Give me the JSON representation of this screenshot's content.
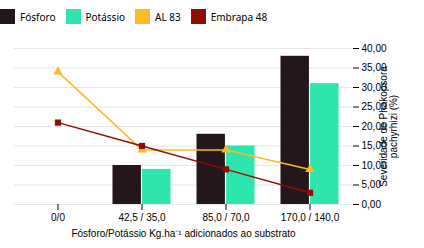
{
  "chart_data": {
    "type": "bar",
    "categories": [
      "0/0",
      "42,5 / 35,0",
      "85,0 / 70,0",
      "170,0 / 140,0"
    ],
    "series": [
      {
        "name": "Fósforo",
        "type": "bar",
        "values": [
          0,
          10,
          18,
          38
        ]
      },
      {
        "name": "Potássio",
        "type": "bar",
        "values": [
          0,
          9,
          15,
          31
        ]
      },
      {
        "name": "AL 83",
        "type": "line",
        "marker": "triangle",
        "values": [
          34,
          14,
          14,
          9
        ]
      },
      {
        "name": "Embrapa 48",
        "type": "line",
        "marker": "square",
        "values": [
          21,
          15,
          9,
          3
        ]
      }
    ],
    "xlabel": "Fósforo/Potássio Kg.ha⁻¹ adicionados ao substrato",
    "ylabel": "Severidade de Phakopsora\npachyrhizi (%)",
    "ylim": [
      0,
      40
    ],
    "yticks": [
      {
        "value": 0,
        "label": "0,00"
      },
      {
        "value": 5,
        "label": "5,00"
      },
      {
        "value": 10,
        "label": "10,00"
      },
      {
        "value": 15,
        "label": "15,00"
      },
      {
        "value": 20,
        "label": "20,00"
      },
      {
        "value": 25,
        "label": "25,00"
      },
      {
        "value": 30,
        "label": "30,00"
      },
      {
        "value": 35,
        "label": "35,00"
      },
      {
        "value": 40,
        "label": "40,00"
      }
    ],
    "grid": true,
    "legend": "top"
  }
}
